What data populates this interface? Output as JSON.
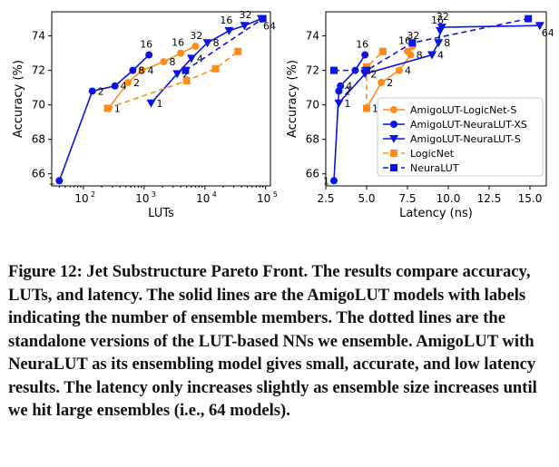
{
  "colors": {
    "orange": "#ff8c1a",
    "blue": "#0a14e6",
    "axis": "#000000"
  },
  "caption": {
    "label": "Figure 12:",
    "text": "Jet Substructure Pareto Front. The results compare accuracy, LUTs, and latency. The solid lines are the AmigoLUT models with labels indicating the number of ensemble members. The dotted lines are the standalone versions of the LUT-based NNs we ensemble. AmigoLUT with NeuraLUT as its ensembling model gives small, accurate, and low latency results. The latency only increases slightly as ensemble size increases until we hit large ensembles (i.e., 64 models)."
  },
  "legend": [
    {
      "label": "AmigoLUT-LogicNet-S",
      "color": "#ff8c1a",
      "marker": "circle",
      "dash": false
    },
    {
      "label": "AmigoLUT-NeuraLUT-XS",
      "color": "#0a14e6",
      "marker": "circle",
      "dash": false
    },
    {
      "label": "AmigoLUT-NeuraLUT-S",
      "color": "#0a14e6",
      "marker": "triangle-down",
      "dash": false
    },
    {
      "label": "LogicNet",
      "color": "#ff8c1a",
      "marker": "square",
      "dash": true
    },
    {
      "label": "NeuraLUT",
      "color": "#0a14e6",
      "marker": "square",
      "dash": true
    }
  ],
  "chart_data": [
    {
      "type": "line",
      "xlabel": "LUTs",
      "ylabel": "Accuracy (%)",
      "xscale": "log",
      "xlim": [
        30,
        120000
      ],
      "ylim": [
        65.3,
        75.4
      ],
      "xticks": [
        100,
        1000,
        10000,
        100000
      ],
      "xtick_labels": [
        "10",
        "10",
        "10",
        "10"
      ],
      "xtick_exponents": [
        "2",
        "3",
        "4",
        "5"
      ],
      "yticks": [
        66,
        68,
        70,
        72,
        74
      ],
      "series": [
        {
          "name": "AmigoLUT-LogicNet-S",
          "marker": "circle",
          "dash": false,
          "color": "#ff8c1a",
          "points": [
            {
              "x": 260,
              "y": 69.8,
              "label": "1"
            },
            {
              "x": 540,
              "y": 71.3,
              "label": "2"
            },
            {
              "x": 920,
              "y": 72.0,
              "label": "4"
            },
            {
              "x": 2100,
              "y": 72.5,
              "label": "8"
            },
            {
              "x": 4000,
              "y": 73.0,
              "label": "16"
            },
            {
              "x": 7000,
              "y": 73.4,
              "label": "32"
            }
          ]
        },
        {
          "name": "AmigoLUT-NeuraLUT-XS",
          "marker": "circle",
          "dash": false,
          "color": "#0a14e6",
          "points": [
            {
              "x": 40,
              "y": 65.6,
              "label": "1"
            },
            {
              "x": 140,
              "y": 70.8,
              "label": "2"
            },
            {
              "x": 330,
              "y": 71.1,
              "label": "4"
            },
            {
              "x": 650,
              "y": 72.0,
              "label": "8"
            },
            {
              "x": 1200,
              "y": 72.9,
              "label": "16"
            }
          ]
        },
        {
          "name": "AmigoLUT-NeuraLUT-S",
          "marker": "triangle-down",
          "dash": false,
          "color": "#0a14e6",
          "points": [
            {
              "x": 1300,
              "y": 70.1,
              "label": "1"
            },
            {
              "x": 3500,
              "y": 71.8,
              "label": "2"
            },
            {
              "x": 6000,
              "y": 72.7,
              "label": "4"
            },
            {
              "x": 11000,
              "y": 73.6,
              "label": "8"
            },
            {
              "x": 25000,
              "y": 74.3,
              "label": "16"
            },
            {
              "x": 45000,
              "y": 74.6,
              "label": "32"
            },
            {
              "x": 85000,
              "y": 75.0,
              "label": "64"
            }
          ]
        },
        {
          "name": "LogicNet",
          "marker": "square",
          "dash": true,
          "color": "#ff8c1a",
          "points": [
            {
              "x": 250,
              "y": 69.8
            },
            {
              "x": 5000,
              "y": 71.4
            },
            {
              "x": 15000,
              "y": 72.1
            },
            {
              "x": 35000,
              "y": 73.1
            }
          ]
        },
        {
          "name": "NeuraLUT",
          "marker": "square",
          "dash": true,
          "color": "#0a14e6",
          "points": [
            {
              "x": 4800,
              "y": 72.0
            },
            {
              "x": 90000,
              "y": 75.0
            }
          ]
        }
      ]
    },
    {
      "type": "line",
      "xlabel": "Latency (ns)",
      "ylabel": "Accuracy (%)",
      "xscale": "linear",
      "xlim": [
        2.5,
        16.0
      ],
      "ylim": [
        65.3,
        75.4
      ],
      "xticks": [
        2.5,
        5.0,
        7.5,
        10.0,
        12.5,
        15.0
      ],
      "xtick_labels": [
        "2.5",
        "5.0",
        "7.5",
        "10.0",
        "12.5",
        "15.0"
      ],
      "yticks": [
        66,
        68,
        70,
        72,
        74
      ],
      "series": [
        {
          "name": "AmigoLUT-LogicNet-S",
          "marker": "circle",
          "dash": false,
          "color": "#ff8c1a",
          "points": [
            {
              "x": 5.0,
              "y": 69.8,
              "label": "1"
            },
            {
              "x": 5.9,
              "y": 71.3,
              "label": "2"
            },
            {
              "x": 7.0,
              "y": 72.0,
              "label": "4"
            },
            {
              "x": 7.7,
              "y": 72.9,
              "label": "8"
            },
            {
              "x": 7.5,
              "y": 73.1,
              "label": "16"
            },
            {
              "x": 7.8,
              "y": 73.4,
              "label": "32"
            }
          ]
        },
        {
          "name": "AmigoLUT-NeuraLUT-XS",
          "marker": "circle",
          "dash": false,
          "color": "#0a14e6",
          "points": [
            {
              "x": 3.0,
              "y": 65.6,
              "label": "1"
            },
            {
              "x": 3.3,
              "y": 70.8,
              "label": "2"
            },
            {
              "x": 3.4,
              "y": 71.1,
              "label": "4"
            },
            {
              "x": 4.3,
              "y": 72.0,
              "label": "8"
            },
            {
              "x": 4.9,
              "y": 72.9,
              "label": "16"
            }
          ]
        },
        {
          "name": "AmigoLUT-NeuraLUT-S",
          "marker": "triangle-down",
          "dash": false,
          "color": "#0a14e6",
          "points": [
            {
              "x": 3.3,
              "y": 70.1,
              "label": "1"
            },
            {
              "x": 4.9,
              "y": 71.8,
              "label": "2"
            },
            {
              "x": 9.0,
              "y": 72.9,
              "label": "4"
            },
            {
              "x": 9.4,
              "y": 73.6,
              "label": "8"
            },
            {
              "x": 9.5,
              "y": 74.3,
              "label": "16"
            },
            {
              "x": 9.6,
              "y": 74.5,
              "label": "32"
            },
            {
              "x": 15.6,
              "y": 74.6,
              "label": "64"
            }
          ]
        },
        {
          "name": "LogicNet",
          "marker": "square",
          "dash": true,
          "color": "#ff8c1a",
          "points": [
            {
              "x": 5.0,
              "y": 69.8
            },
            {
              "x": 5.0,
              "y": 72.2
            },
            {
              "x": 6.0,
              "y": 73.1
            }
          ]
        },
        {
          "name": "NeuraLUT",
          "marker": "square",
          "dash": true,
          "color": "#0a14e6",
          "points": [
            {
              "x": 3.0,
              "y": 72.0
            },
            {
              "x": 5.0,
              "y": 72.0
            },
            {
              "x": 7.8,
              "y": 73.6
            },
            {
              "x": 14.9,
              "y": 75.0
            }
          ]
        }
      ]
    }
  ]
}
